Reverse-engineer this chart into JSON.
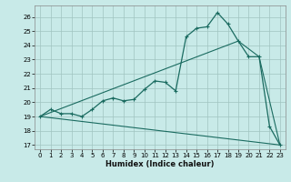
{
  "xlabel": "Humidex (Indice chaleur)",
  "bg_color": "#c8eae8",
  "grid_color": "#a0c4c0",
  "line_color": "#1a6b60",
  "xlim": [
    -0.5,
    23.5
  ],
  "ylim": [
    16.7,
    26.8
  ],
  "xticks": [
    0,
    1,
    2,
    3,
    4,
    5,
    6,
    7,
    8,
    9,
    10,
    11,
    12,
    13,
    14,
    15,
    16,
    17,
    18,
    19,
    20,
    21,
    22,
    23
  ],
  "yticks": [
    17,
    18,
    19,
    20,
    21,
    22,
    23,
    24,
    25,
    26
  ],
  "line1_x": [
    0,
    1,
    2,
    3,
    4,
    5,
    6,
    7,
    8,
    9,
    10,
    11,
    12,
    13,
    14,
    15,
    16,
    17,
    18,
    19,
    20,
    21,
    22,
    23
  ],
  "line1_y": [
    19.0,
    19.5,
    19.2,
    19.2,
    19.0,
    19.5,
    20.1,
    20.3,
    20.1,
    20.2,
    20.9,
    21.5,
    21.4,
    20.8,
    24.6,
    25.2,
    25.3,
    26.3,
    25.5,
    24.3,
    23.2,
    23.2,
    18.3,
    17.0
  ],
  "line2_x": [
    0,
    23
  ],
  "line2_y": [
    19.0,
    17.0
  ],
  "line3_x": [
    0,
    19,
    21,
    23
  ],
  "line3_y": [
    19.0,
    24.3,
    23.2,
    17.0
  ]
}
